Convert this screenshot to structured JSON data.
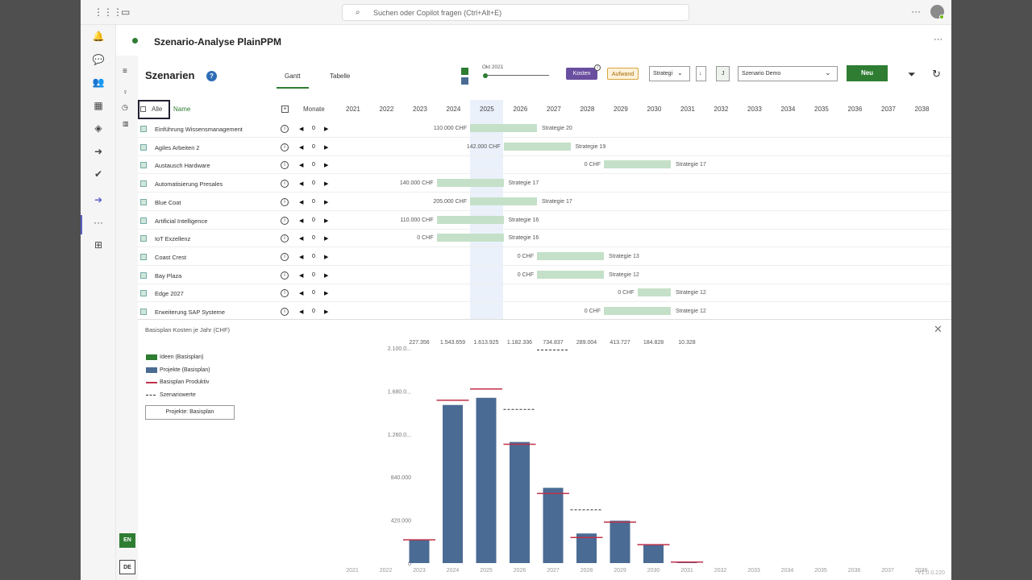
{
  "search": {
    "placeholder": "Suchen oder Copilot fragen (Ctrl+Alt+E)"
  },
  "app": {
    "title": "Szenario-Analyse PlainPPM"
  },
  "header": {
    "title": "Szenarien",
    "help": "?"
  },
  "tabs": [
    {
      "label": "Gantt",
      "active": true
    },
    {
      "label": "Tabelle",
      "active": false
    }
  ],
  "controls": {
    "date_label": "Okt 2021",
    "kosten": "Kosten",
    "aufwand": "Aufwand",
    "strategy_select": "Strategi",
    "sort_label": "↓",
    "j_label": "J",
    "scenario_select": "Szenario Demo",
    "new_button": "Neu"
  },
  "grid_header": {
    "all": "Alle",
    "name": "Name",
    "add": "+",
    "months": "Monate"
  },
  "years": [
    "2021",
    "2022",
    "2023",
    "2024",
    "2025",
    "2026",
    "2027",
    "2028",
    "2029",
    "2030",
    "2031",
    "2032",
    "2033",
    "2034",
    "2035",
    "2036",
    "2037",
    "2038"
  ],
  "rows": [
    {
      "name": "Einführung Wissensmanagement",
      "months": "0",
      "cost": "110.000 CHF",
      "strategy": "Strategie 20",
      "start": 2025,
      "end": 2027
    },
    {
      "name": "Agiles Arbeiten 2",
      "months": "0",
      "cost": "142.000 CHF",
      "strategy": "Strategie 19",
      "start": 2026,
      "end": 2028
    },
    {
      "name": "Austausch Hardware",
      "months": "0",
      "cost": "0 CHF",
      "strategy": "Strategie 17",
      "start": 2029,
      "end": 2031
    },
    {
      "name": "Automatisierung Presales",
      "months": "0",
      "cost": "140.000 CHF",
      "strategy": "Strategie 17",
      "start": 2024,
      "end": 2026
    },
    {
      "name": "Blue Coat",
      "months": "0",
      "cost": "205.000 CHF",
      "strategy": "Strategie 17",
      "start": 2025,
      "end": 2027
    },
    {
      "name": "Artificial Intelligence",
      "months": "0",
      "cost": "110.000 CHF",
      "strategy": "Strategie 16",
      "start": 2024,
      "end": 2026
    },
    {
      "name": "IoT Exzellenz",
      "months": "0",
      "cost": "0 CHF",
      "strategy": "Strategie 16",
      "start": 2024,
      "end": 2026
    },
    {
      "name": "Coast Crest",
      "months": "0",
      "cost": "0 CHF",
      "strategy": "Strategie 13",
      "start": 2027,
      "end": 2029
    },
    {
      "name": "Bay Plaza",
      "months": "0",
      "cost": "0 CHF",
      "strategy": "Strategie 12",
      "start": 2027,
      "end": 2029
    },
    {
      "name": "Edge 2027",
      "months": "0",
      "cost": "0 CHF",
      "strategy": "Strategie 12",
      "start": 2030,
      "end": 2031
    },
    {
      "name": "Erweiterung SAP Systeme",
      "months": "0",
      "cost": "0 CHF",
      "strategy": "Strategie 12",
      "start": 2029,
      "end": 2031
    }
  ],
  "legend": {
    "ideas": "Ideen (Basisplan)",
    "projects": "Projekte (Basisplan)",
    "productive": "Basisplan Produktiv",
    "scenario": "Szenariowerte",
    "button": "Projekte: Basisplan"
  },
  "colors": {
    "green": "#2e7d32",
    "project_blue": "#4a6b94",
    "red": "#c0304a",
    "gantt_bar": "#c5e0c8",
    "purple": "#6a4fa0"
  },
  "version": "V1.0.0.220",
  "chart_data": {
    "type": "bar",
    "title": "Basisplan Kosten je Jahr (CHF)",
    "categories": [
      "2021",
      "2022",
      "2023",
      "2024",
      "2025",
      "2026",
      "2027",
      "2028",
      "2029",
      "2030",
      "2031",
      "2032",
      "2033",
      "2034",
      "2035",
      "2036",
      "2037",
      "2038"
    ],
    "ylim": [
      0,
      2100000
    ],
    "yticks": [
      "0",
      "420.000",
      "840.000",
      "1.260.0...",
      "1.680.0...",
      "2.100.0..."
    ],
    "ytick_values": [
      0,
      420000,
      840000,
      1260000,
      1680000,
      2100000
    ],
    "top_labels": [
      "",
      "",
      "227.356",
      "1.543.659",
      "1.613.925",
      "1.182.336",
      "734.837",
      "289.004",
      "413.727",
      "184.828",
      "10.328",
      "",
      "",
      "",
      "",
      "",
      "",
      ""
    ],
    "series": [
      {
        "name": "Projekte (Basisplan)",
        "values": [
          0,
          0,
          227356,
          1543659,
          1613925,
          1182336,
          734837,
          289004,
          413727,
          184828,
          10328,
          0,
          0,
          0,
          0,
          0,
          0,
          0
        ]
      },
      {
        "name": "Basisplan Produktiv",
        "values": [
          null,
          null,
          227356,
          1590000,
          1700000,
          1160000,
          680000,
          250000,
          400000,
          180000,
          10000,
          null,
          null,
          null,
          null,
          null,
          null,
          null
        ]
      },
      {
        "name": "Szenariowerte",
        "values": [
          null,
          null,
          null,
          null,
          null,
          1500000,
          2080000,
          520000,
          null,
          null,
          null,
          null,
          null,
          null,
          null,
          null,
          null,
          null
        ]
      }
    ]
  }
}
